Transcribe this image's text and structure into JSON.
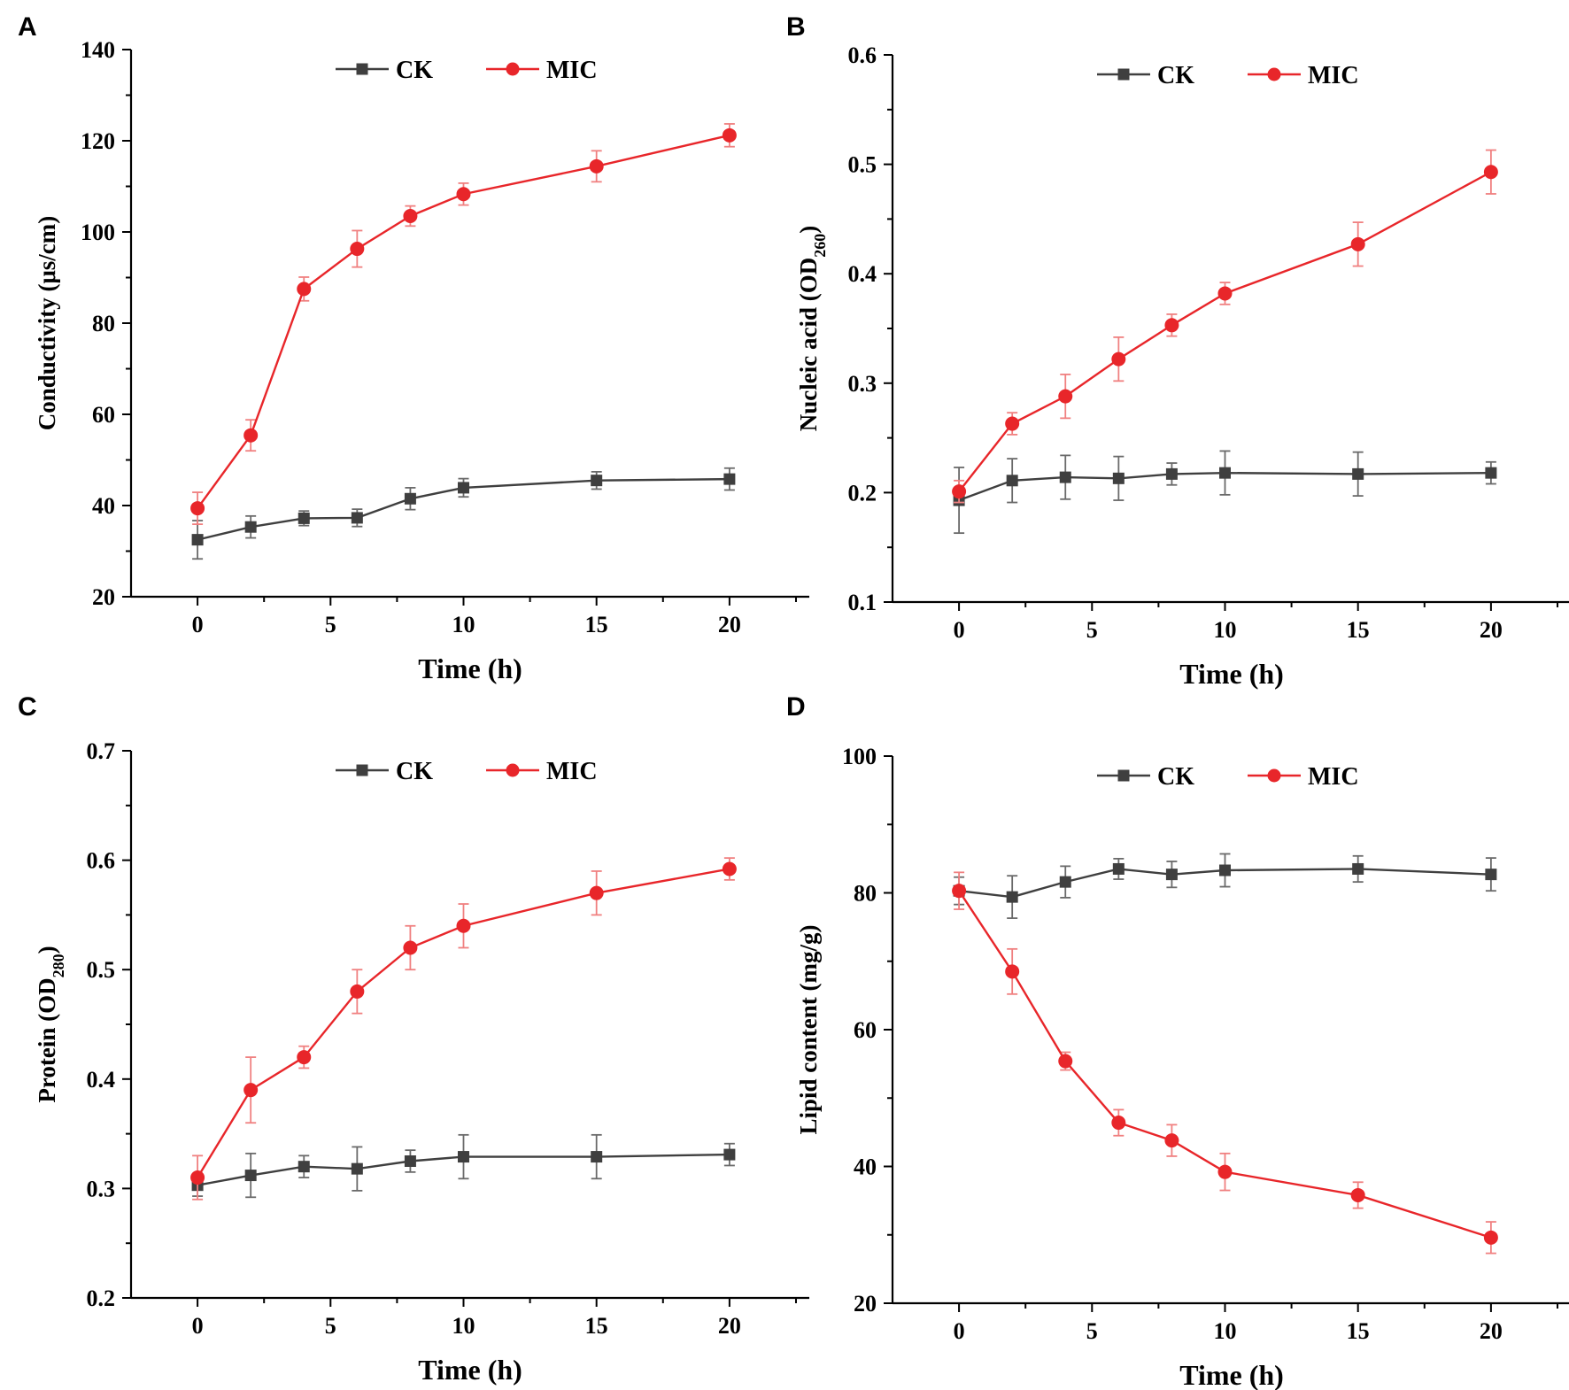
{
  "colors": {
    "ck": "#3f3f3f",
    "mic": "#e8262a",
    "axis": "#000000"
  },
  "chart_data": [
    {
      "panel": "A",
      "type": "line",
      "xlabel": "Time (h)",
      "ylabel": "Conductivity (μs/cm)",
      "ylabel_sub": "",
      "ylabel_tail": "",
      "xlim": [
        -2.5,
        23
      ],
      "ylim": [
        20,
        140
      ],
      "xticks": [
        0,
        5,
        10,
        15,
        20
      ],
      "yticks": [
        20,
        40,
        60,
        80,
        100,
        120,
        140
      ],
      "ytick_labels": [
        "20",
        "40",
        "60",
        "80",
        "100",
        "120",
        "140"
      ],
      "legend": [
        "CK",
        "MIC"
      ],
      "x": [
        0,
        2,
        4,
        6,
        8,
        10,
        15,
        20
      ],
      "series": [
        {
          "name": "CK",
          "marker": "square",
          "values": [
            32.5,
            35.3,
            37.2,
            37.3,
            41.5,
            43.9,
            45.5,
            45.8
          ],
          "errors": [
            4.2,
            2.4,
            1.6,
            1.9,
            2.4,
            2.0,
            1.9,
            2.4
          ]
        },
        {
          "name": "MIC",
          "marker": "circle",
          "values": [
            39.4,
            55.4,
            87.5,
            96.3,
            103.5,
            108.3,
            114.4,
            121.2
          ],
          "errors": [
            3.5,
            3.4,
            2.6,
            4.0,
            2.2,
            2.4,
            3.4,
            2.5
          ]
        }
      ]
    },
    {
      "panel": "B",
      "type": "line",
      "xlabel": "Time (h)",
      "ylabel": "Nucleic acid (OD",
      "ylabel_sub": "260",
      "ylabel_tail": ")",
      "xlim": [
        -2.5,
        23
      ],
      "ylim": [
        0.1,
        0.6
      ],
      "xticks": [
        0,
        5,
        10,
        15,
        20
      ],
      "yticks": [
        0.1,
        0.2,
        0.3,
        0.4,
        0.5,
        0.6
      ],
      "ytick_labels": [
        "0.1",
        "0.2",
        "0.3",
        "0.4",
        "0.5",
        "0.6"
      ],
      "legend": [
        "CK",
        "MIC"
      ],
      "x": [
        0,
        2,
        4,
        6,
        8,
        10,
        15,
        20
      ],
      "series": [
        {
          "name": "CK",
          "marker": "square",
          "values": [
            0.193,
            0.211,
            0.214,
            0.213,
            0.217,
            0.218,
            0.217,
            0.218
          ],
          "errors": [
            0.03,
            0.02,
            0.02,
            0.02,
            0.01,
            0.02,
            0.02,
            0.01
          ]
        },
        {
          "name": "MIC",
          "marker": "circle",
          "values": [
            0.201,
            0.263,
            0.288,
            0.322,
            0.353,
            0.382,
            0.427,
            0.493
          ],
          "errors": [
            0.01,
            0.01,
            0.02,
            0.02,
            0.01,
            0.01,
            0.02,
            0.02
          ]
        }
      ]
    },
    {
      "panel": "C",
      "type": "line",
      "xlabel": "Time (h)",
      "ylabel": "Protein (OD",
      "ylabel_sub": "280",
      "ylabel_tail": ")",
      "xlim": [
        -2.5,
        23
      ],
      "ylim": [
        0.2,
        0.7
      ],
      "xticks": [
        0,
        5,
        10,
        15,
        20
      ],
      "yticks": [
        0.2,
        0.3,
        0.4,
        0.5,
        0.6,
        0.7
      ],
      "ytick_labels": [
        "0.2",
        "0.3",
        "0.4",
        "0.5",
        "0.6",
        "0.7"
      ],
      "legend": [
        "CK",
        "MIC"
      ],
      "x": [
        0,
        2,
        4,
        6,
        8,
        10,
        15,
        20
      ],
      "series": [
        {
          "name": "CK",
          "marker": "square",
          "values": [
            0.303,
            0.312,
            0.32,
            0.318,
            0.325,
            0.329,
            0.329,
            0.331
          ],
          "errors": [
            0.01,
            0.02,
            0.01,
            0.02,
            0.01,
            0.02,
            0.02,
            0.01
          ]
        },
        {
          "name": "MIC",
          "marker": "circle",
          "values": [
            0.31,
            0.39,
            0.42,
            0.48,
            0.52,
            0.54,
            0.57,
            0.592
          ],
          "errors": [
            0.02,
            0.03,
            0.01,
            0.02,
            0.02,
            0.02,
            0.02,
            0.01
          ]
        }
      ]
    },
    {
      "panel": "D",
      "type": "line",
      "xlabel": "Time (h)",
      "ylabel": "Lipid content (mg/g)",
      "ylabel_sub": "",
      "ylabel_tail": "",
      "xlim": [
        -2.5,
        23
      ],
      "ylim": [
        20,
        100
      ],
      "xticks": [
        0,
        5,
        10,
        15,
        20
      ],
      "yticks": [
        20,
        40,
        60,
        80,
        100
      ],
      "ytick_labels": [
        "20",
        "40",
        "60",
        "80",
        "100"
      ],
      "legend": [
        "CK",
        "MIC"
      ],
      "x": [
        0,
        2,
        4,
        6,
        8,
        10,
        15,
        20
      ],
      "series": [
        {
          "name": "CK",
          "marker": "square",
          "values": [
            80.3,
            79.4,
            81.6,
            83.5,
            82.7,
            83.3,
            83.5,
            82.7
          ],
          "errors": [
            2.0,
            3.1,
            2.3,
            1.5,
            1.9,
            2.4,
            1.9,
            2.4
          ]
        },
        {
          "name": "MIC",
          "marker": "circle",
          "values": [
            80.3,
            68.5,
            55.4,
            46.4,
            43.8,
            39.2,
            35.8,
            29.6
          ],
          "errors": [
            2.7,
            3.3,
            1.3,
            1.9,
            2.3,
            2.7,
            1.9,
            2.3
          ]
        }
      ]
    }
  ]
}
